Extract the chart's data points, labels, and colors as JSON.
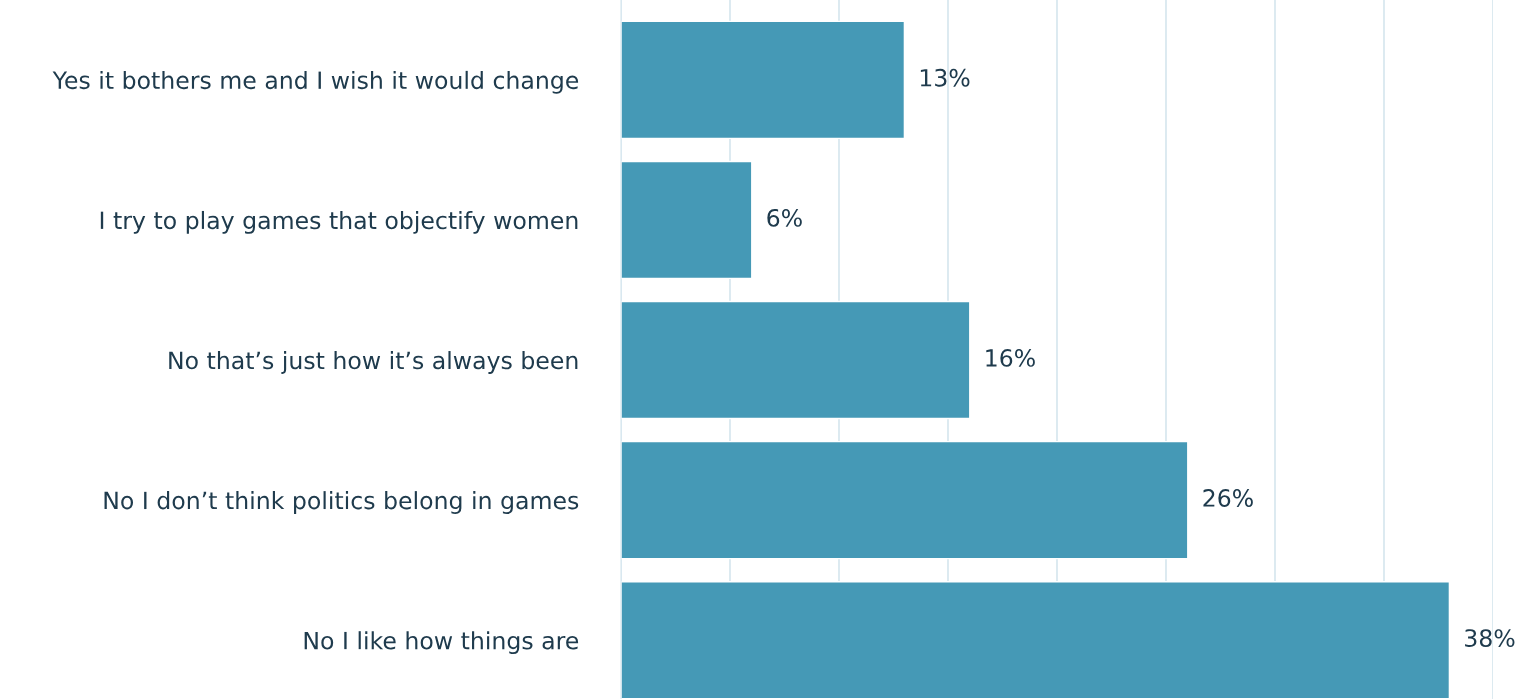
{
  "chart_data": {
    "type": "bar",
    "orientation": "horizontal",
    "categories": [
      "Yes it bothers me and I wish it would change",
      "I try to play games that objectify women",
      "No that’s just how it’s always been",
      "No I don’t think politics belong in games",
      "No I like how things are"
    ],
    "values": [
      13,
      6,
      16,
      26,
      38
    ],
    "value_labels": [
      "13%",
      "6%",
      "16%",
      "26%",
      "38%"
    ],
    "color": "#4599b6",
    "xlim": [
      0,
      40
    ],
    "xticks": [
      {
        "value": 0,
        "label": null
      },
      {
        "value": 5,
        "label": null
      },
      {
        "value": 10,
        "label": null
      },
      {
        "value": 15,
        "label": null
      },
      {
        "value": 20,
        "label": null
      },
      {
        "value": 25,
        "label": null
      },
      {
        "value": 30,
        "label": null
      },
      {
        "value": 35,
        "label": null
      },
      {
        "value": 40,
        "label": null
      }
    ],
    "grid": "x",
    "tick_labels": "y"
  }
}
